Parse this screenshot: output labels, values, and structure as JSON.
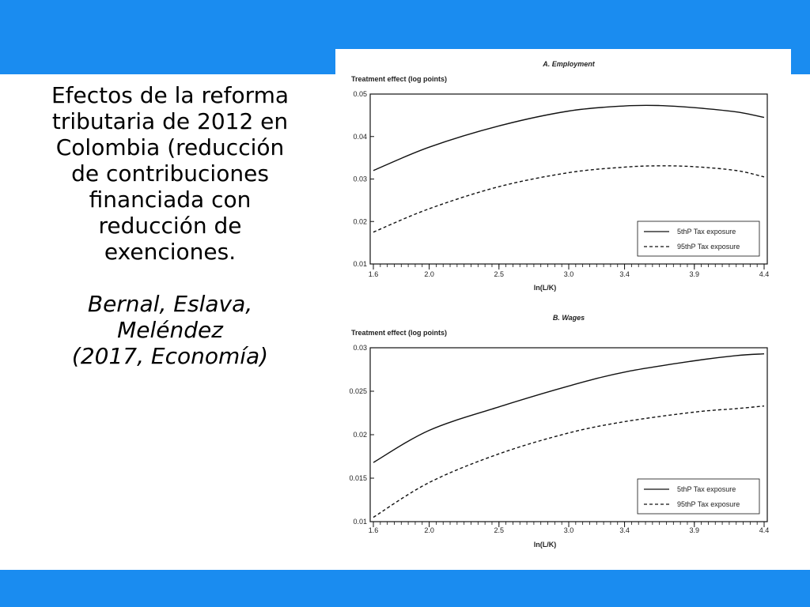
{
  "slide": {
    "band_color": "#1a8cf0",
    "description": "Efectos de la reforma tributaria de 2012 en Colombia (reducción de contribuciones financiada con reducción de exenciones.",
    "citation_line1": "Bernal, Eslava,",
    "citation_line2": "Meléndez",
    "citation_line3": "(2017, Economía)"
  },
  "chart_data": [
    {
      "type": "line",
      "title": "A. Employment",
      "ylabel": "Treatment effect (log points)",
      "xlabel": "ln(L/K)",
      "xlim": [
        1.6,
        4.4
      ],
      "ylim": [
        0.01,
        0.05
      ],
      "x_ticks": [
        1.6,
        2.0,
        2.5,
        3.0,
        3.4,
        3.9,
        4.4
      ],
      "x_tick_labels": [
        "1.6",
        "2.0",
        "2.5",
        "3.0",
        "3.4",
        "3.9",
        "4.4"
      ],
      "y_ticks": [
        0.01,
        0.02,
        0.03,
        0.04,
        0.05
      ],
      "y_tick_labels": [
        "0.01",
        "0.02",
        "0.03",
        "0.04",
        "0.05"
      ],
      "legend_position": "bottom-right",
      "x": [
        1.6,
        2.0,
        2.5,
        3.0,
        3.4,
        3.65,
        3.9,
        4.2,
        4.4
      ],
      "series": [
        {
          "name": "5thP Tax exposure",
          "style": "solid",
          "values": [
            0.032,
            0.0375,
            0.0425,
            0.046,
            0.0472,
            0.0473,
            0.0468,
            0.0458,
            0.0445
          ]
        },
        {
          "name": "95thP Tax exposure",
          "style": "dashed",
          "values": [
            0.0175,
            0.023,
            0.0282,
            0.0315,
            0.0328,
            0.0331,
            0.0329,
            0.032,
            0.0305
          ]
        }
      ]
    },
    {
      "type": "line",
      "title": "B. Wages",
      "ylabel": "Treatment effect (log points)",
      "xlabel": "ln(L/K)",
      "xlim": [
        1.6,
        4.4
      ],
      "ylim": [
        0.01,
        0.03
      ],
      "x_ticks": [
        1.6,
        2.0,
        2.5,
        3.0,
        3.4,
        3.9,
        4.4
      ],
      "x_tick_labels": [
        "1.6",
        "2.0",
        "2.5",
        "3.0",
        "3.4",
        "3.9",
        "4.4"
      ],
      "y_ticks": [
        0.01,
        0.015,
        0.02,
        0.025,
        0.03
      ],
      "y_tick_labels": [
        "0.01",
        "0.015",
        "0.02",
        "0.025",
        "0.03"
      ],
      "legend_position": "bottom-right",
      "x": [
        1.6,
        2.0,
        2.5,
        3.0,
        3.4,
        3.9,
        4.2,
        4.4
      ],
      "series": [
        {
          "name": "5thP Tax exposure",
          "style": "solid",
          "values": [
            0.0168,
            0.0205,
            0.0232,
            0.0256,
            0.0272,
            0.0285,
            0.0291,
            0.0293
          ]
        },
        {
          "name": "95thP Tax exposure",
          "style": "dashed",
          "values": [
            0.0105,
            0.0145,
            0.0178,
            0.0202,
            0.0215,
            0.0226,
            0.023,
            0.0233
          ]
        }
      ]
    }
  ]
}
